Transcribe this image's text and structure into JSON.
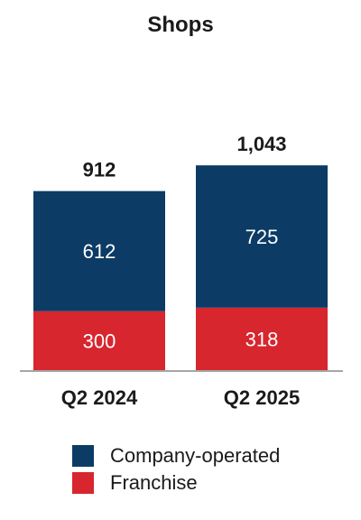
{
  "chart_data": {
    "type": "bar",
    "stacked": true,
    "title": "Shops",
    "categories": [
      "Q2 2024",
      "Q2 2025"
    ],
    "series": [
      {
        "name": "Franchise",
        "values": [
          300,
          318
        ],
        "color": "#d7262e"
      },
      {
        "name": "Company-operated",
        "values": [
          612,
          725
        ],
        "color": "#0c3b66"
      }
    ],
    "totals": [
      "912",
      "1,043"
    ],
    "xlabel": "",
    "ylabel": "",
    "ylim": [
      0,
      1300
    ],
    "grid": false,
    "legend": "bottom"
  }
}
